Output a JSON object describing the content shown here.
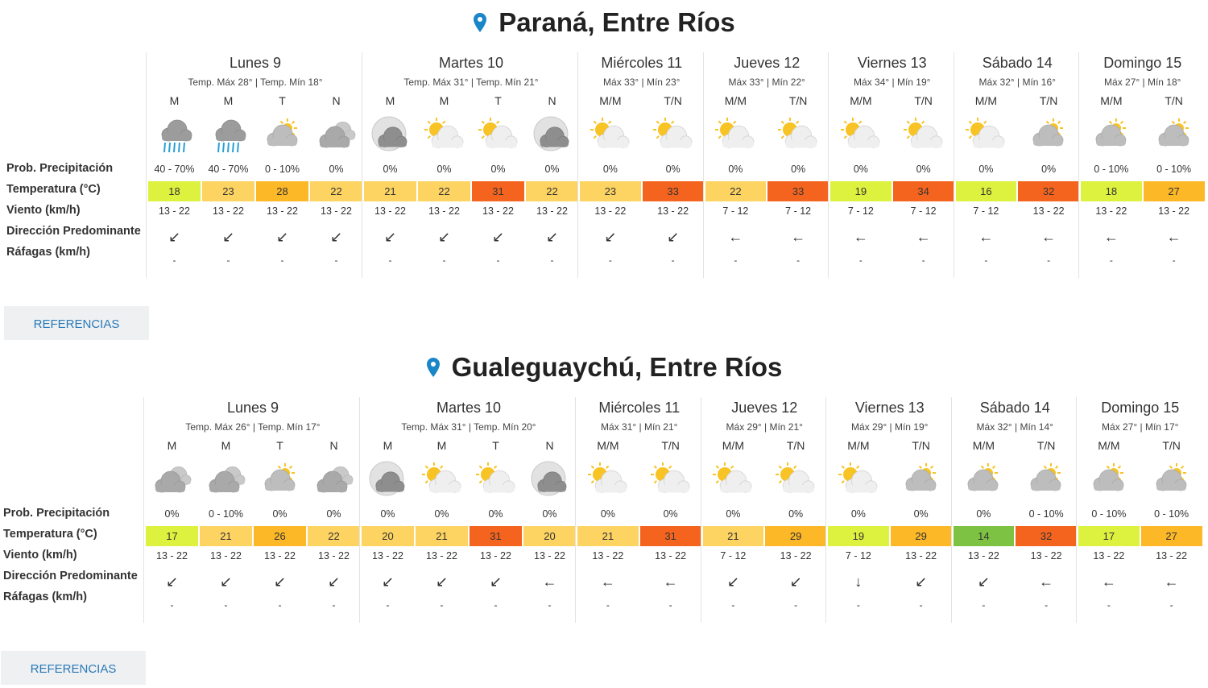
{
  "locations": [
    {
      "title": "Paraná, Entre Ríos",
      "row_labels": [
        "Prob. Precipitación",
        "Temperatura (°C)",
        "Viento (km/h)",
        "Dirección Predominante",
        "Ráfagas (km/h)"
      ],
      "button": "REFERENCIAS",
      "days": [
        {
          "name": "Lunes 9",
          "subtitle": "Temp. Máx 28° | Temp. Mín 18°",
          "periods": [
            {
              "label": "M",
              "icon": "rain",
              "precip": "40 - 70%",
              "temp": 18,
              "temp_color": "#dcf23e",
              "wind": "13 - 22",
              "direction": "↙",
              "gust": "-"
            },
            {
              "label": "M",
              "icon": "storm",
              "precip": "40 - 70%",
              "temp": 23,
              "temp_color": "#fdd462",
              "wind": "13 - 22",
              "direction": "↙",
              "gust": "-"
            },
            {
              "label": "T",
              "icon": "partly",
              "precip": "0 - 10%",
              "temp": 28,
              "temp_color": "#fcb827",
              "wind": "13 - 22",
              "direction": "↙",
              "gust": "-"
            },
            {
              "label": "N",
              "icon": "cloudy",
              "precip": "0%",
              "temp": 22,
              "temp_color": "#fdd462",
              "wind": "13 - 22",
              "direction": "↙",
              "gust": "-"
            }
          ]
        },
        {
          "name": "Martes 10",
          "subtitle": "Temp. Máx 31° | Temp. Mín 21°",
          "periods": [
            {
              "label": "M",
              "icon": "moon",
              "precip": "0%",
              "temp": 21,
              "temp_color": "#fdd462",
              "wind": "13 - 22",
              "direction": "↙",
              "gust": "-"
            },
            {
              "label": "M",
              "icon": "sun",
              "precip": "0%",
              "temp": 22,
              "temp_color": "#fdd462",
              "wind": "13 - 22",
              "direction": "↙",
              "gust": "-"
            },
            {
              "label": "T",
              "icon": "sun",
              "precip": "0%",
              "temp": 31,
              "temp_color": "#f5641e",
              "wind": "13 - 22",
              "direction": "↙",
              "gust": "-"
            },
            {
              "label": "N",
              "icon": "moon",
              "precip": "0%",
              "temp": 22,
              "temp_color": "#fdd462",
              "wind": "13 - 22",
              "direction": "↙",
              "gust": "-"
            }
          ]
        },
        {
          "name": "Miércoles 11",
          "subtitle": "Máx 33° | Mín 23°",
          "periods": [
            {
              "label": "M/M",
              "icon": "sun",
              "precip": "0%",
              "temp": 23,
              "temp_color": "#fdd462",
              "wind": "13 - 22",
              "direction": "↙",
              "gust": "-"
            },
            {
              "label": "T/N",
              "icon": "sun",
              "precip": "0%",
              "temp": 33,
              "temp_color": "#f5641e",
              "wind": "13 - 22",
              "direction": "↙",
              "gust": "-"
            }
          ]
        },
        {
          "name": "Jueves 12",
          "subtitle": "Máx 33° | Mín 22°",
          "periods": [
            {
              "label": "M/M",
              "icon": "sun",
              "precip": "0%",
              "temp": 22,
              "temp_color": "#fdd462",
              "wind": "7 - 12",
              "direction": "←",
              "gust": "-"
            },
            {
              "label": "T/N",
              "icon": "sun",
              "precip": "0%",
              "temp": 33,
              "temp_color": "#f5641e",
              "wind": "7 - 12",
              "direction": "←",
              "gust": "-"
            }
          ]
        },
        {
          "name": "Viernes 13",
          "subtitle": "Máx 34° | Mín 19°",
          "periods": [
            {
              "label": "M/M",
              "icon": "sun",
              "precip": "0%",
              "temp": 19,
              "temp_color": "#dcf23e",
              "wind": "7 - 12",
              "direction": "←",
              "gust": "-"
            },
            {
              "label": "T/N",
              "icon": "sun",
              "precip": "0%",
              "temp": 34,
              "temp_color": "#f5641e",
              "wind": "7 - 12",
              "direction": "←",
              "gust": "-"
            }
          ]
        },
        {
          "name": "Sábado 14",
          "subtitle": "Máx 32° | Mín 16°",
          "periods": [
            {
              "label": "M/M",
              "icon": "sun",
              "precip": "0%",
              "temp": 16,
              "temp_color": "#dcf23e",
              "wind": "7 - 12",
              "direction": "←",
              "gust": "-"
            },
            {
              "label": "T/N",
              "icon": "partly",
              "precip": "0%",
              "temp": 32,
              "temp_color": "#f5641e",
              "wind": "13 - 22",
              "direction": "←",
              "gust": "-"
            }
          ]
        },
        {
          "name": "Domingo 15",
          "subtitle": "Máx 27° | Mín 18°",
          "periods": [
            {
              "label": "M/M",
              "icon": "partly",
              "precip": "0 - 10%",
              "temp": 18,
              "temp_color": "#dcf23e",
              "wind": "13 - 22",
              "direction": "←",
              "gust": "-"
            },
            {
              "label": "T/N",
              "icon": "partly",
              "precip": "0 - 10%",
              "temp": 27,
              "temp_color": "#fcb827",
              "wind": "13 - 22",
              "direction": "←",
              "gust": "-"
            }
          ]
        }
      ]
    },
    {
      "title": "Gualeguaychú, Entre Ríos",
      "row_labels": [
        "Prob. Precipitación",
        "Temperatura (°C)",
        "Viento (km/h)",
        "Dirección Predominante",
        "Ráfagas (km/h)"
      ],
      "button": "REFERENCIAS",
      "days": [
        {
          "name": "Lunes 9",
          "subtitle": "Temp. Máx 26° | Temp. Mín 17°",
          "periods": [
            {
              "label": "M",
              "icon": "cloudy",
              "precip": "0%",
              "temp": 17,
              "temp_color": "#dcf23e",
              "wind": "13 - 22",
              "direction": "↙",
              "gust": "-"
            },
            {
              "label": "M",
              "icon": "cloudy",
              "precip": "0 - 10%",
              "temp": 21,
              "temp_color": "#fdd462",
              "wind": "13 - 22",
              "direction": "↙",
              "gust": "-"
            },
            {
              "label": "T",
              "icon": "partly",
              "precip": "0%",
              "temp": 26,
              "temp_color": "#fcb827",
              "wind": "13 - 22",
              "direction": "↙",
              "gust": "-"
            },
            {
              "label": "N",
              "icon": "cloudy",
              "precip": "0%",
              "temp": 22,
              "temp_color": "#fdd462",
              "wind": "13 - 22",
              "direction": "↙",
              "gust": "-"
            }
          ]
        },
        {
          "name": "Martes 10",
          "subtitle": "Temp. Máx 31° | Temp. Mín 20°",
          "periods": [
            {
              "label": "M",
              "icon": "moon",
              "precip": "0%",
              "temp": 20,
              "temp_color": "#fdd462",
              "wind": "13 - 22",
              "direction": "↙",
              "gust": "-"
            },
            {
              "label": "M",
              "icon": "sun",
              "precip": "0%",
              "temp": 21,
              "temp_color": "#fdd462",
              "wind": "13 - 22",
              "direction": "↙",
              "gust": "-"
            },
            {
              "label": "T",
              "icon": "sun",
              "precip": "0%",
              "temp": 31,
              "temp_color": "#f5641e",
              "wind": "13 - 22",
              "direction": "↙",
              "gust": "-"
            },
            {
              "label": "N",
              "icon": "moon",
              "precip": "0%",
              "temp": 20,
              "temp_color": "#fdd462",
              "wind": "13 - 22",
              "direction": "←",
              "gust": "-"
            }
          ]
        },
        {
          "name": "Miércoles 11",
          "subtitle": "Máx 31° | Mín 21°",
          "periods": [
            {
              "label": "M/M",
              "icon": "sun",
              "precip": "0%",
              "temp": 21,
              "temp_color": "#fdd462",
              "wind": "13 - 22",
              "direction": "←",
              "gust": "-"
            },
            {
              "label": "T/N",
              "icon": "sun",
              "precip": "0%",
              "temp": 31,
              "temp_color": "#f5641e",
              "wind": "13 - 22",
              "direction": "←",
              "gust": "-"
            }
          ]
        },
        {
          "name": "Jueves 12",
          "subtitle": "Máx 29° | Mín 21°",
          "periods": [
            {
              "label": "M/M",
              "icon": "sun",
              "precip": "0%",
              "temp": 21,
              "temp_color": "#fdd462",
              "wind": "7 - 12",
              "direction": "↙",
              "gust": "-"
            },
            {
              "label": "T/N",
              "icon": "sun",
              "precip": "0%",
              "temp": 29,
              "temp_color": "#fcb827",
              "wind": "13 - 22",
              "direction": "↙",
              "gust": "-"
            }
          ]
        },
        {
          "name": "Viernes 13",
          "subtitle": "Máx 29° | Mín 19°",
          "periods": [
            {
              "label": "M/M",
              "icon": "sun",
              "precip": "0%",
              "temp": 19,
              "temp_color": "#dcf23e",
              "wind": "7 - 12",
              "direction": "↓",
              "gust": "-"
            },
            {
              "label": "T/N",
              "icon": "partly",
              "precip": "0%",
              "temp": 29,
              "temp_color": "#fcb827",
              "wind": "13 - 22",
              "direction": "↙",
              "gust": "-"
            }
          ]
        },
        {
          "name": "Sábado 14",
          "subtitle": "Máx 32° | Mín 14°",
          "periods": [
            {
              "label": "M/M",
              "icon": "partly",
              "precip": "0%",
              "temp": 14,
              "temp_color": "#7dc242",
              "wind": "13 - 22",
              "direction": "↙",
              "gust": "-"
            },
            {
              "label": "T/N",
              "icon": "partly",
              "precip": "0 - 10%",
              "temp": 32,
              "temp_color": "#f5641e",
              "wind": "13 - 22",
              "direction": "←",
              "gust": "-"
            }
          ]
        },
        {
          "name": "Domingo 15",
          "subtitle": "Máx 27° | Mín 17°",
          "periods": [
            {
              "label": "M/M",
              "icon": "partly",
              "precip": "0 - 10%",
              "temp": 17,
              "temp_color": "#dcf23e",
              "wind": "13 - 22",
              "direction": "←",
              "gust": "-"
            },
            {
              "label": "T/N",
              "icon": "partly",
              "precip": "0 - 10%",
              "temp": 27,
              "temp_color": "#fcb827",
              "wind": "13 - 22",
              "direction": "←",
              "gust": "-"
            }
          ]
        }
      ]
    }
  ]
}
